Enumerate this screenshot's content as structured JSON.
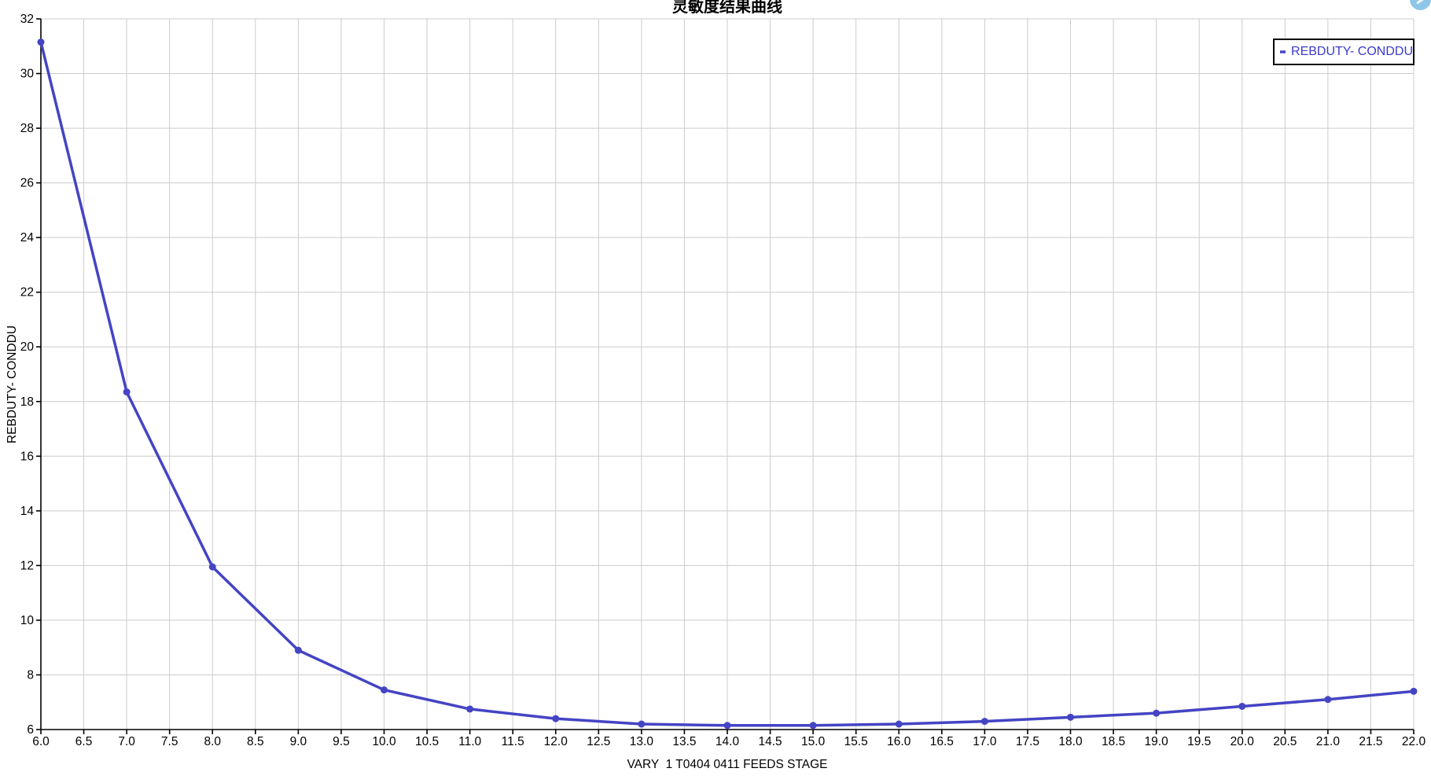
{
  "chart_data": {
    "type": "line",
    "title": "灵敏度结果曲线",
    "xlabel": "VARY  1 T0404 0411 FEEDS STAGE",
    "ylabel": "REBDUTY- CONDDU",
    "xlim": [
      6.0,
      22.0
    ],
    "ylim": [
      6,
      32
    ],
    "grid": true,
    "legend_position": "top-right",
    "x_tick_values": [
      6.0,
      6.5,
      7.0,
      7.5,
      8.0,
      8.5,
      9.0,
      9.5,
      10.0,
      10.5,
      11.0,
      11.5,
      12.0,
      12.5,
      13.0,
      13.5,
      14.0,
      14.5,
      15.0,
      15.5,
      16.0,
      16.5,
      17.0,
      17.5,
      18.0,
      18.5,
      19.0,
      19.5,
      20.0,
      20.5,
      21.0,
      21.5,
      22.0
    ],
    "x_tick_labels": [
      "6.0",
      "6.5",
      "7.0",
      "7.5",
      "8.0",
      "8.5",
      "9.0",
      "9.5",
      "10.0",
      "10.5",
      "11.0",
      "11.5",
      "12.0",
      "12.5",
      "13.0",
      "13.5",
      "14.0",
      "14.5",
      "15.0",
      "15.5",
      "16.0",
      "16.5",
      "17.0",
      "17.5",
      "18.0",
      "18.5",
      "19.0",
      "19.5",
      "20.0",
      "20.5",
      "21.0",
      "21.5",
      "22.0"
    ],
    "y_tick_values": [
      6,
      8,
      10,
      12,
      14,
      16,
      18,
      20,
      22,
      24,
      26,
      28,
      30,
      32
    ],
    "y_tick_labels": [
      "6",
      "8",
      "10",
      "12",
      "14",
      "16",
      "18",
      "20",
      "22",
      "24",
      "26",
      "28",
      "30",
      "32"
    ],
    "series": [
      {
        "name": "REBDUTY- CONDDU",
        "x": [
          6,
          7,
          8,
          9,
          10,
          11,
          12,
          13,
          14,
          15,
          16,
          17,
          18,
          19,
          20,
          21,
          22
        ],
        "y": [
          31.15,
          18.35,
          11.95,
          8.9,
          7.45,
          6.75,
          6.4,
          6.2,
          6.15,
          6.15,
          6.2,
          6.3,
          6.45,
          6.6,
          6.85,
          7.1,
          7.4
        ]
      }
    ],
    "colors": {
      "line": "#4444c4",
      "legend_text": "#3939cc",
      "grid": "#cccccc",
      "axis": "#000000",
      "help_icon": "#8ec6e8"
    }
  }
}
